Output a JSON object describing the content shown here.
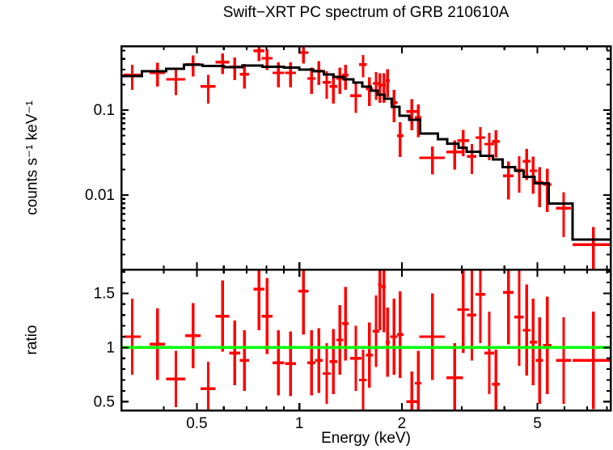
{
  "figure": {
    "background": "#ffffff",
    "frame_color": "#000000",
    "data_color": "#ff0000",
    "model_color": "#000000",
    "reference_color": "#00ff00"
  },
  "chart_data": [
    {
      "type": "scatter",
      "panel": "spectrum",
      "title": "Swift−XRT PC spectrum of GRB 210610A",
      "xlabel": "Energy (keV)",
      "ylabel": "counts s⁻¹ keV⁻¹",
      "xscale": "log",
      "yscale": "log",
      "xlim": [
        0.3,
        8.2
      ],
      "ylim": [
        0.00133,
        0.565
      ],
      "grid": false,
      "xticks": {
        "labeled": [
          0.5,
          1,
          2,
          5
        ],
        "labels": [
          "0.5",
          "1",
          "2",
          "5"
        ],
        "minor": [
          0.4,
          0.6,
          0.7,
          0.8,
          0.9,
          3,
          4,
          6,
          7,
          8
        ]
      },
      "yticks": {
        "labeled": [
          0.1,
          0.01
        ],
        "labels": [
          "0.1",
          "0.01"
        ],
        "minor": [
          0.002,
          0.003,
          0.004,
          0.005,
          0.006,
          0.007,
          0.008,
          0.009,
          0.02,
          0.03,
          0.04,
          0.05,
          0.06,
          0.07,
          0.08,
          0.09,
          0.2,
          0.3,
          0.4,
          0.5
        ]
      },
      "series": [
        {
          "name": "observed-counts",
          "type": "errorbar",
          "color": "#ff0000",
          "point_format": [
            "energy_keV",
            "energy_halfwidth_keV",
            "counts_s_keV",
            "counts_err"
          ],
          "points": [
            [
              0.323,
              0.019,
              0.257,
              0.085
            ],
            [
              0.383,
              0.02,
              0.274,
              0.085
            ],
            [
              0.434,
              0.028,
              0.23,
              0.08
            ],
            [
              0.487,
              0.025,
              0.342,
              0.095
            ],
            [
              0.54,
              0.027,
              0.189,
              0.07
            ],
            [
              0.595,
              0.028,
              0.365,
              0.1
            ],
            [
              0.646,
              0.024,
              0.32,
              0.095
            ],
            [
              0.69,
              0.022,
              0.263,
              0.085
            ],
            [
              0.761,
              0.028,
              0.497,
              0.12
            ],
            [
              0.804,
              0.03,
              0.407,
              0.11
            ],
            [
              0.868,
              0.035,
              0.274,
              0.09
            ],
            [
              0.942,
              0.035,
              0.274,
              0.09
            ],
            [
              1.028,
              0.035,
              0.474,
              0.12
            ],
            [
              1.085,
              0.03,
              0.235,
              0.08
            ],
            [
              1.14,
              0.03,
              0.287,
              0.09
            ],
            [
              1.203,
              0.033,
              0.211,
              0.075
            ],
            [
              1.258,
              0.033,
              0.189,
              0.07
            ],
            [
              1.314,
              0.03,
              0.235,
              0.08
            ],
            [
              1.365,
              0.03,
              0.257,
              0.085
            ],
            [
              1.465,
              0.055,
              0.148,
              0.055
            ],
            [
              1.539,
              0.04,
              0.342,
              0.1
            ],
            [
              1.606,
              0.037,
              0.177,
              0.065
            ],
            [
              1.679,
              0.038,
              0.206,
              0.075
            ],
            [
              1.724,
              0.023,
              0.197,
              0.075
            ],
            [
              1.77,
              0.023,
              0.197,
              0.075
            ],
            [
              1.817,
              0.024,
              0.222,
              0.08
            ],
            [
              1.895,
              0.045,
              0.122,
              0.05
            ],
            [
              1.978,
              0.042,
              0.05,
              0.022
            ],
            [
              2.137,
              0.075,
              0.096,
              0.038
            ],
            [
              2.233,
              0.05,
              0.082,
              0.034
            ],
            [
              2.46,
              0.21,
              0.0274,
              0.01
            ],
            [
              2.86,
              0.16,
              0.032,
              0.012
            ],
            [
              3.03,
              0.12,
              0.0435,
              0.015
            ],
            [
              3.21,
              0.1,
              0.0286,
              0.011
            ],
            [
              3.4,
              0.11,
              0.0474,
              0.016
            ],
            [
              3.61,
              0.12,
              0.0398,
              0.014
            ],
            [
              3.78,
              0.1,
              0.0426,
              0.015
            ],
            [
              4.11,
              0.15,
              0.0169,
              0.008
            ],
            [
              4.42,
              0.14,
              0.0197,
              0.009
            ],
            [
              4.65,
              0.12,
              0.025,
              0.01
            ],
            [
              4.86,
              0.12,
              0.0193,
              0.009
            ],
            [
              5.07,
              0.12,
              0.0142,
              0.007
            ],
            [
              5.35,
              0.15,
              0.0133,
              0.007
            ],
            [
              5.97,
              0.3,
              0.007,
              0.0038
            ],
            [
              7.3,
              0.95,
              0.0026,
              0.0016
            ]
          ]
        },
        {
          "name": "folded-model",
          "type": "step",
          "color": "#000000",
          "bin_format": [
            "energy_lo_keV",
            "energy_hi_keV",
            "counts_s_keV"
          ],
          "bins": [
            [
              0.3,
              0.345,
              0.251
            ],
            [
              0.345,
              0.406,
              0.287
            ],
            [
              0.406,
              0.458,
              0.306
            ],
            [
              0.458,
              0.52,
              0.341
            ],
            [
              0.52,
              0.6,
              0.33
            ],
            [
              0.6,
              0.68,
              0.32
            ],
            [
              0.68,
              0.78,
              0.335
            ],
            [
              0.78,
              0.9,
              0.322
            ],
            [
              0.9,
              1.0,
              0.315
            ],
            [
              1.0,
              1.1,
              0.3
            ],
            [
              1.1,
              1.18,
              0.287
            ],
            [
              1.18,
              1.26,
              0.263
            ],
            [
              1.26,
              1.35,
              0.246
            ],
            [
              1.35,
              1.44,
              0.23
            ],
            [
              1.44,
              1.53,
              0.211
            ],
            [
              1.53,
              1.62,
              0.189
            ],
            [
              1.62,
              1.7,
              0.169
            ],
            [
              1.7,
              1.78,
              0.151
            ],
            [
              1.78,
              1.87,
              0.136
            ],
            [
              1.87,
              1.97,
              0.109
            ],
            [
              1.97,
              2.1,
              0.0858
            ],
            [
              2.1,
              2.26,
              0.0772
            ],
            [
              2.26,
              2.55,
              0.053
            ],
            [
              2.55,
              2.72,
              0.0455
            ],
            [
              2.72,
              2.93,
              0.0401
            ],
            [
              2.93,
              3.1,
              0.0362
            ],
            [
              3.1,
              3.4,
              0.0324
            ],
            [
              3.4,
              3.7,
              0.029
            ],
            [
              3.7,
              3.95,
              0.0261
            ],
            [
              3.95,
              4.3,
              0.0214
            ],
            [
              4.3,
              4.55,
              0.0193
            ],
            [
              4.55,
              4.9,
              0.0163
            ],
            [
              4.9,
              5.4,
              0.0137
            ],
            [
              5.4,
              6.35,
              0.0079
            ],
            [
              6.35,
              8.2,
              0.003
            ]
          ]
        }
      ]
    },
    {
      "type": "scatter",
      "panel": "ratio",
      "title": "",
      "xlabel": "Energy (keV)",
      "ylabel": "ratio",
      "xscale": "log",
      "yscale": "linear",
      "xlim": [
        0.3,
        8.2
      ],
      "ylim": [
        0.42,
        1.72
      ],
      "grid": false,
      "reference_line": {
        "value": 1,
        "color": "#00ff00"
      },
      "xticks": {
        "labeled": [
          0.5,
          1,
          2,
          5
        ],
        "labels": [
          "0.5",
          "1",
          "2",
          "5"
        ],
        "minor": [
          0.4,
          0.6,
          0.7,
          0.8,
          0.9,
          3,
          4,
          6,
          7,
          8
        ]
      },
      "yticks": {
        "labeled": [
          0.5,
          1,
          1.5
        ],
        "labels": [
          "0.5",
          "1",
          "1.5"
        ],
        "minor": [
          0.6,
          0.7,
          0.8,
          0.9,
          1.1,
          1.2,
          1.3,
          1.4,
          1.6,
          1.7
        ]
      },
      "series": [
        {
          "name": "data-model-ratio",
          "type": "errorbar",
          "color": "#ff0000",
          "point_format": [
            "energy_keV",
            "energy_halfwidth_keV",
            "ratio",
            "ratio_err"
          ],
          "points": [
            [
              0.323,
              0.019,
              1.1,
              0.35
            ],
            [
              0.383,
              0.02,
              1.03,
              0.33
            ],
            [
              0.434,
              0.028,
              0.71,
              0.26
            ],
            [
              0.487,
              0.025,
              1.11,
              0.3
            ],
            [
              0.54,
              0.027,
              0.62,
              0.25
            ],
            [
              0.595,
              0.028,
              1.29,
              0.33
            ],
            [
              0.646,
              0.024,
              0.95,
              0.3
            ],
            [
              0.69,
              0.022,
              0.88,
              0.28
            ],
            [
              0.761,
              0.028,
              1.54,
              0.38
            ],
            [
              0.804,
              0.03,
              1.29,
              0.35
            ],
            [
              0.868,
              0.035,
              0.86,
              0.3
            ],
            [
              0.942,
              0.035,
              0.85,
              0.3
            ],
            [
              1.028,
              0.035,
              1.52,
              0.4
            ],
            [
              1.085,
              0.03,
              0.86,
              0.3
            ],
            [
              1.14,
              0.03,
              0.88,
              0.3
            ],
            [
              1.203,
              0.033,
              0.76,
              0.28
            ],
            [
              1.258,
              0.033,
              0.87,
              0.3
            ],
            [
              1.314,
              0.03,
              1.07,
              0.32
            ],
            [
              1.365,
              0.03,
              1.22,
              0.34
            ],
            [
              1.465,
              0.055,
              0.9,
              0.3
            ],
            [
              1.539,
              0.04,
              0.7,
              0.28
            ],
            [
              1.606,
              0.037,
              0.93,
              0.3
            ],
            [
              1.679,
              0.038,
              1.15,
              0.33
            ],
            [
              1.724,
              0.023,
              1.58,
              0.42
            ],
            [
              1.77,
              0.023,
              1.56,
              0.42
            ],
            [
              1.817,
              0.024,
              1.05,
              0.32
            ],
            [
              1.895,
              0.045,
              1.1,
              0.35
            ],
            [
              1.978,
              0.042,
              1.12,
              0.4
            ],
            [
              2.137,
              0.075,
              0.5,
              0.28
            ],
            [
              2.233,
              0.05,
              0.67,
              0.3
            ],
            [
              2.46,
              0.21,
              1.1,
              0.4
            ],
            [
              2.86,
              0.16,
              0.72,
              0.32
            ],
            [
              3.03,
              0.12,
              1.35,
              0.4
            ],
            [
              3.21,
              0.1,
              1.3,
              0.42
            ],
            [
              3.4,
              0.11,
              1.49,
              0.45
            ],
            [
              3.61,
              0.12,
              0.95,
              0.38
            ],
            [
              3.78,
              0.1,
              0.66,
              0.32
            ],
            [
              4.11,
              0.15,
              1.51,
              0.48
            ],
            [
              4.42,
              0.14,
              1.28,
              0.45
            ],
            [
              4.65,
              0.12,
              1.16,
              0.42
            ],
            [
              4.86,
              0.12,
              1.05,
              0.4
            ],
            [
              5.07,
              0.12,
              0.88,
              0.4
            ],
            [
              5.35,
              0.15,
              1.02,
              0.45
            ],
            [
              5.97,
              0.3,
              0.88,
              0.4
            ],
            [
              7.3,
              0.95,
              0.88,
              0.45
            ]
          ]
        }
      ]
    }
  ]
}
